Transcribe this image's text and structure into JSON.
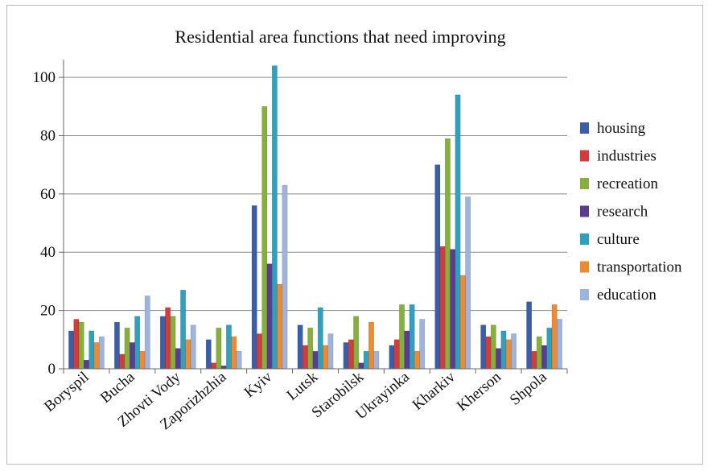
{
  "chart_data": {
    "type": "bar",
    "title": "Residential area functions that need improving",
    "xlabel": "",
    "ylabel": "",
    "ylim": [
      0,
      105
    ],
    "yticks": [
      0,
      20,
      40,
      60,
      80,
      100
    ],
    "grid": true,
    "legend_position": "right",
    "categories": [
      "Boryspil",
      "Bucha",
      "Zhovti Vody",
      "Zaporizhzhia",
      "Kyiv",
      "Lutsk",
      "Starobilsk",
      "Ukrayinka",
      "Kharkiv",
      "Kherson",
      "Shpola"
    ],
    "series": [
      {
        "name": "housing",
        "color": "#3a5fa8",
        "values": [
          13,
          16,
          18,
          10,
          56,
          15,
          9,
          8,
          70,
          15,
          23
        ]
      },
      {
        "name": "industries",
        "color": "#d63a3a",
        "values": [
          17,
          5,
          21,
          2,
          12,
          8,
          10,
          10,
          42,
          11,
          6
        ]
      },
      {
        "name": "recreation",
        "color": "#86b03a",
        "values": [
          16,
          14,
          18,
          14,
          90,
          14,
          18,
          22,
          79,
          15,
          11
        ]
      },
      {
        "name": "research",
        "color": "#5e3b92",
        "values": [
          3,
          9,
          7,
          1,
          36,
          6,
          2,
          13,
          41,
          7,
          8
        ]
      },
      {
        "name": "culture",
        "color": "#2fa0bd",
        "values": [
          13,
          18,
          27,
          15,
          104,
          21,
          6,
          22,
          94,
          13,
          14
        ]
      },
      {
        "name": "transportation",
        "color": "#f08a2e",
        "values": [
          9,
          6,
          10,
          11,
          29,
          8,
          16,
          6,
          32,
          10,
          22
        ]
      },
      {
        "name": "education",
        "color": "#9fb4dc",
        "values": [
          11,
          25,
          15,
          6,
          63,
          12,
          6,
          17,
          59,
          12,
          17
        ]
      }
    ]
  }
}
